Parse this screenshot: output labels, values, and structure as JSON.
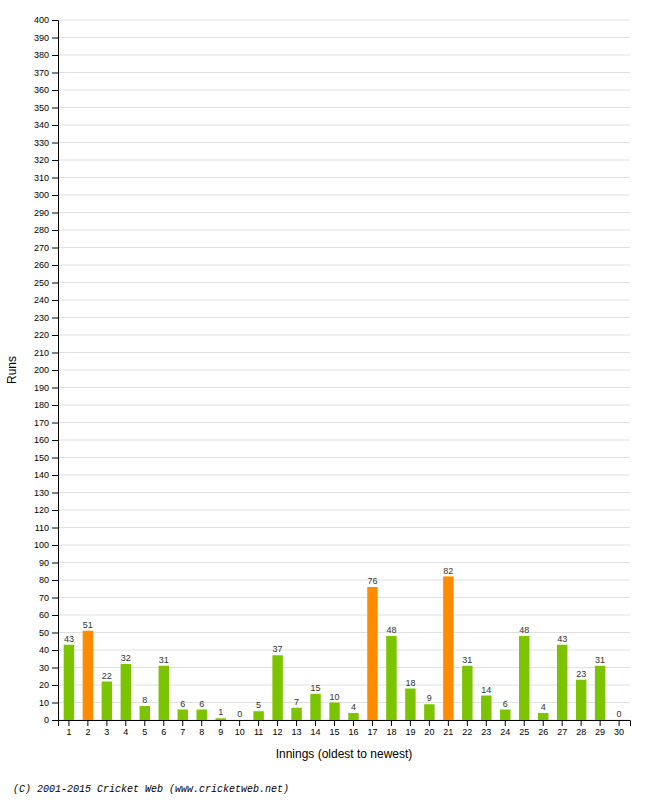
{
  "chart_data": {
    "type": "bar",
    "xlabel": "Innings (oldest to newest)",
    "ylabel": "Runs",
    "annotations": [
      "(C) 2001-2015 Cricket Web (www.cricketweb.net)"
    ],
    "categories": [
      "1",
      "2",
      "3",
      "4",
      "5",
      "6",
      "7",
      "8",
      "9",
      "10",
      "11",
      "12",
      "13",
      "14",
      "15",
      "16",
      "17",
      "18",
      "19",
      "20",
      "21",
      "22",
      "23",
      "24",
      "25",
      "26",
      "27",
      "28",
      "29",
      "30"
    ],
    "values": [
      43,
      51,
      22,
      32,
      8,
      31,
      6,
      6,
      1,
      0,
      5,
      37,
      7,
      15,
      10,
      4,
      76,
      48,
      18,
      9,
      82,
      31,
      14,
      6,
      48,
      4,
      43,
      23,
      31,
      0
    ],
    "colors": [
      "#7cc400",
      "#ff8c00",
      "#7cc400",
      "#7cc400",
      "#7cc400",
      "#7cc400",
      "#7cc400",
      "#7cc400",
      "#7cc400",
      "#7cc400",
      "#7cc400",
      "#7cc400",
      "#7cc400",
      "#7cc400",
      "#7cc400",
      "#7cc400",
      "#ff8c00",
      "#7cc400",
      "#7cc400",
      "#7cc400",
      "#ff8c00",
      "#7cc400",
      "#7cc400",
      "#7cc400",
      "#7cc400",
      "#7cc400",
      "#7cc400",
      "#7cc400",
      "#7cc400",
      "#7cc400"
    ],
    "ylim": [
      0,
      400
    ],
    "yticks": [
      0,
      10,
      20,
      30,
      40,
      50,
      60,
      70,
      80,
      90,
      100,
      110,
      120,
      130,
      140,
      150,
      160,
      170,
      180,
      190,
      200,
      210,
      220,
      230,
      240,
      250,
      260,
      270,
      280,
      290,
      300,
      310,
      320,
      330,
      340,
      350,
      360,
      370,
      380,
      390,
      400
    ],
    "grid": true,
    "data_labels": true
  }
}
